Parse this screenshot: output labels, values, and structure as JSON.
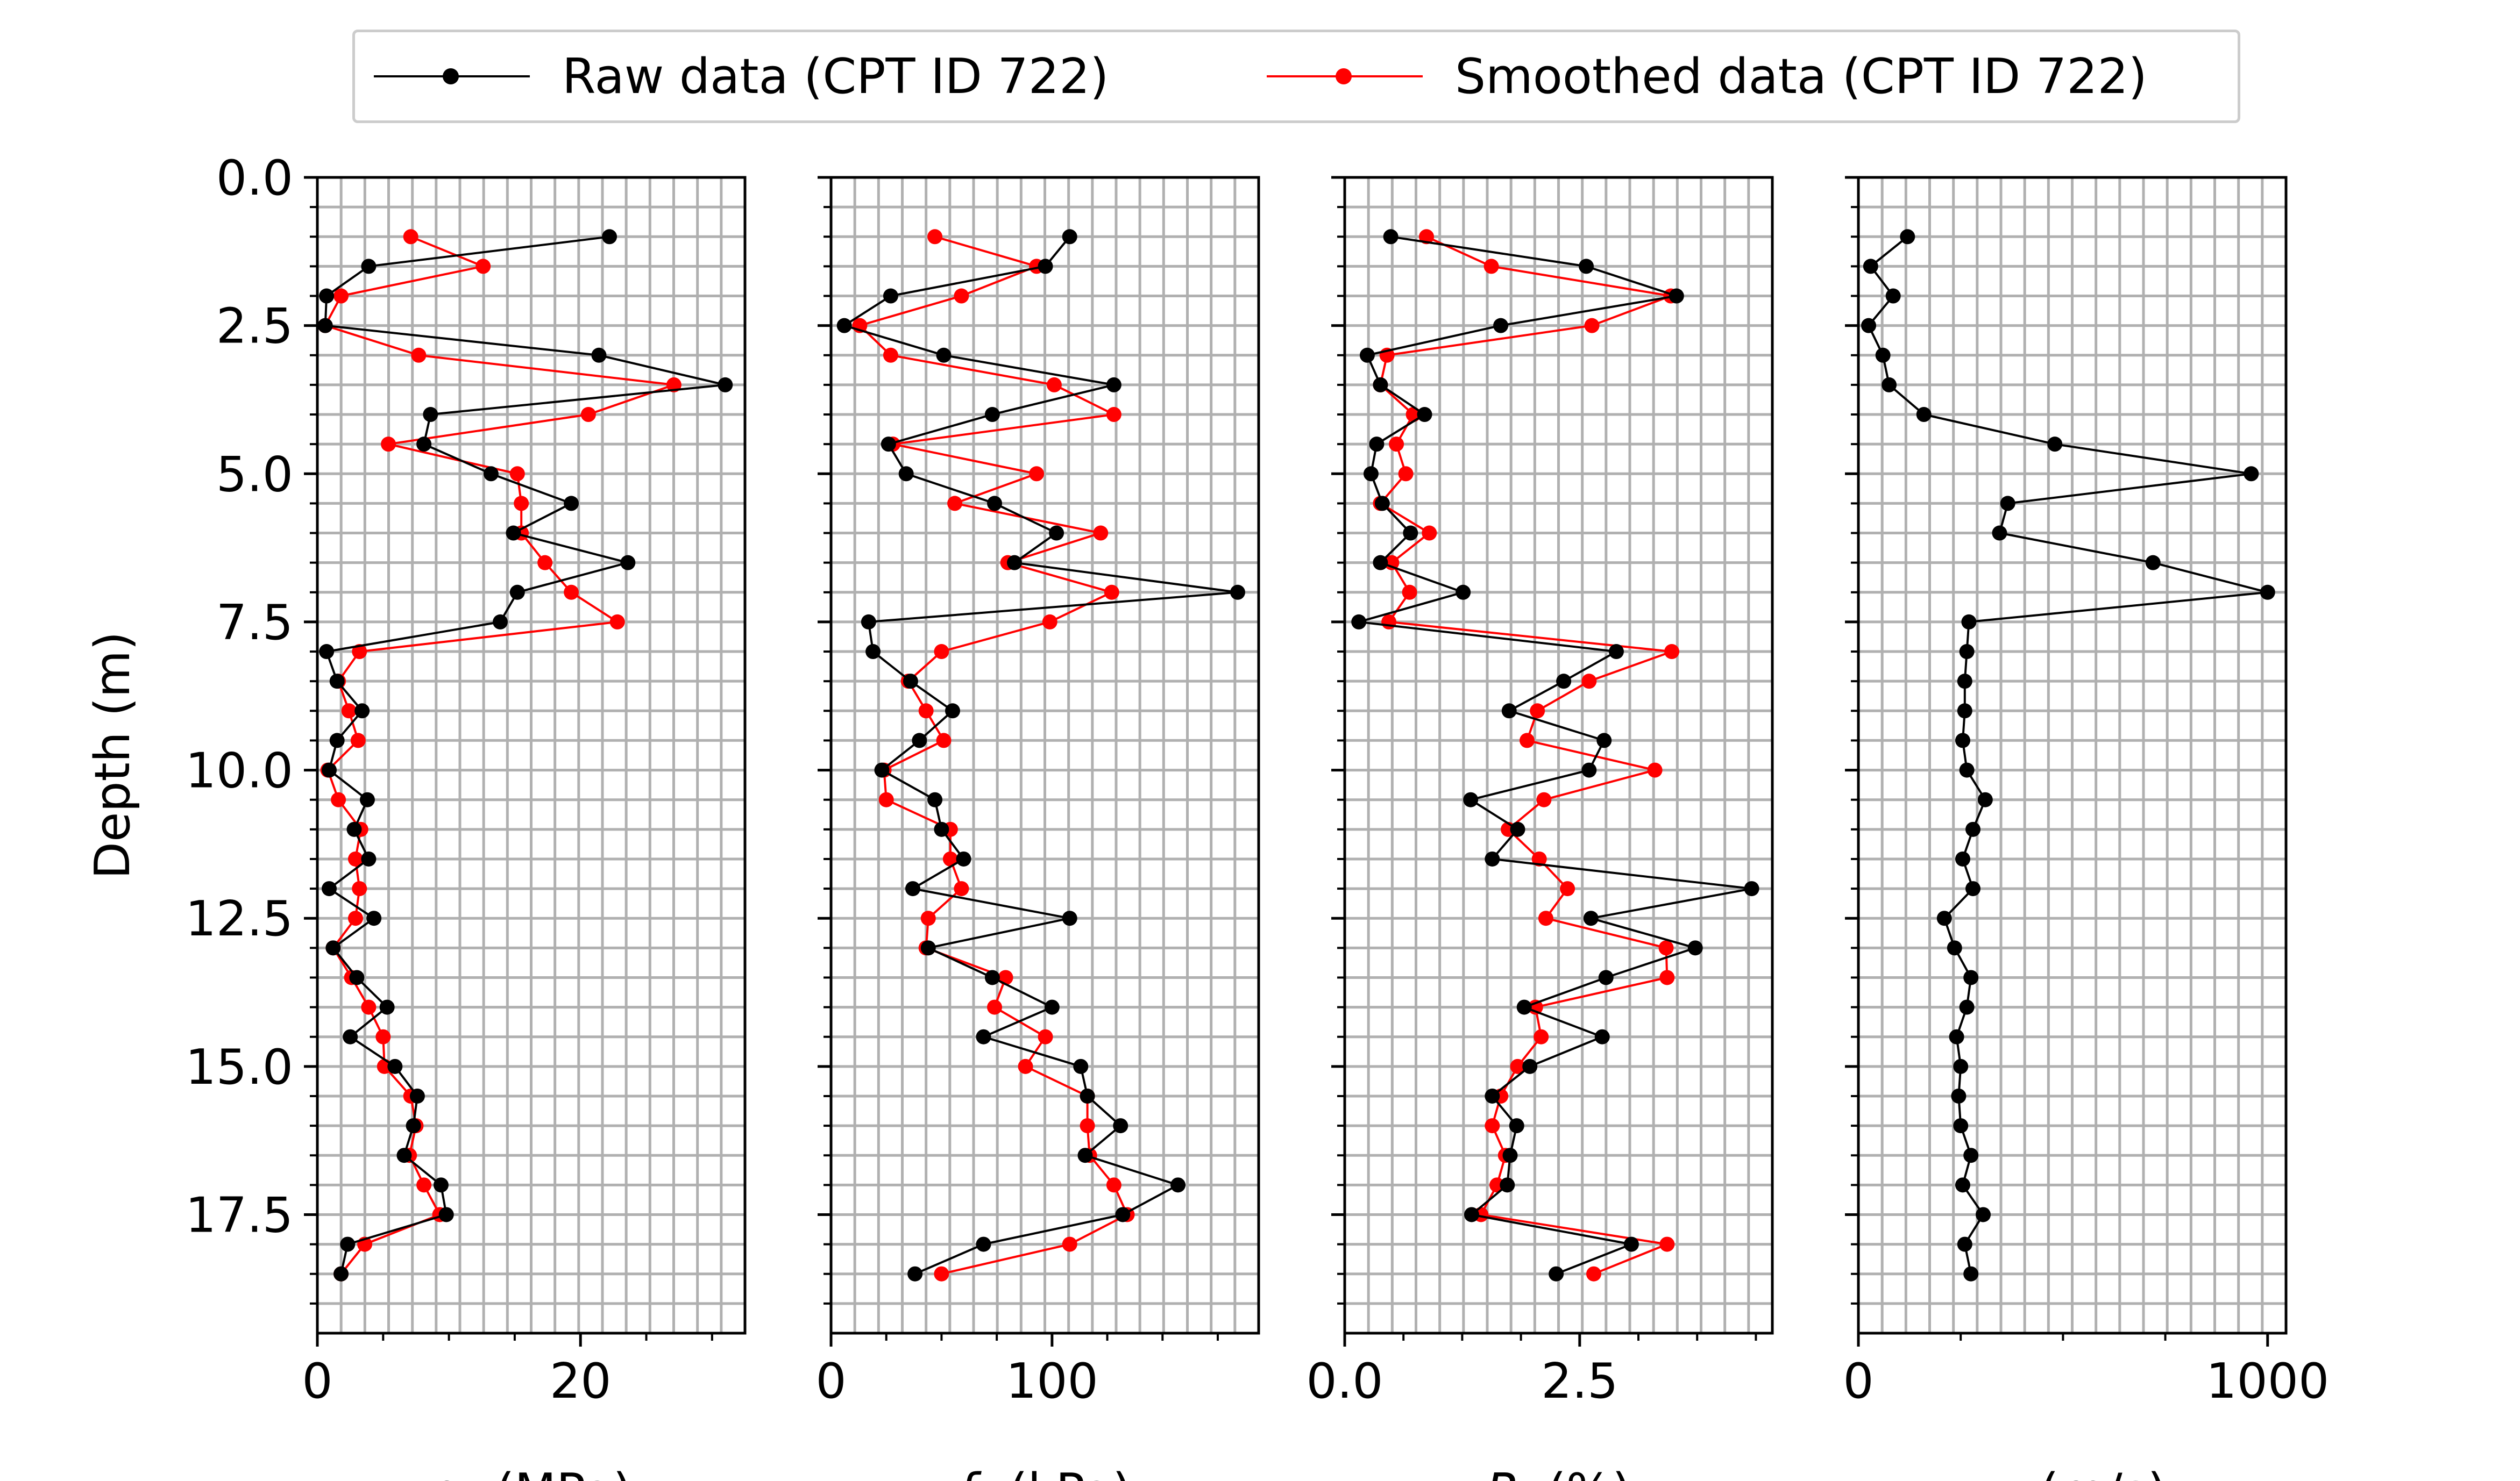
{
  "legend": {
    "raw_label": "Raw data (CPT ID 722)",
    "smooth_label": "Smoothed data (CPT ID 722)",
    "raw_color": "#000000",
    "smooth_color": "#ff0000"
  },
  "chart_data": [
    {
      "type": "line",
      "xlabel": "qc (MPa)",
      "xlabel_main": "q",
      "xlabel_sub": "c",
      "xlabel_unit": " (MPa)",
      "ylabel": "Depth (m)",
      "xlim": [
        0,
        32.5
      ],
      "ylim": [
        19.5,
        0
      ],
      "xticks": [
        0,
        20
      ],
      "yticks": [
        0.0,
        2.5,
        5.0,
        7.5,
        10.0,
        12.5,
        15.0,
        17.5
      ],
      "grid": true,
      "series": [
        {
          "name": "Raw data (CPT ID 722)",
          "color": "#000000",
          "depth": [
            1.0,
            1.5,
            2.0,
            2.5,
            3.0,
            3.5,
            4.0,
            4.5,
            5.0,
            5.5,
            6.0,
            6.5,
            7.0,
            7.5,
            8.0,
            8.5,
            9.0,
            9.5,
            10.0,
            10.5,
            11.0,
            11.5,
            12.0,
            12.5,
            13.0,
            13.5,
            14.0,
            14.5,
            15.0,
            15.5,
            16.0,
            16.5,
            17.0,
            17.5,
            18.0,
            18.5
          ],
          "values": [
            22.2,
            3.9,
            0.7,
            0.6,
            21.4,
            31.0,
            8.6,
            8.1,
            13.2,
            19.3,
            14.9,
            23.6,
            15.2,
            13.9,
            0.7,
            1.5,
            3.4,
            1.5,
            0.9,
            3.8,
            2.8,
            3.9,
            0.9,
            4.3,
            1.2,
            3.0,
            5.3,
            2.5,
            5.9,
            7.6,
            7.3,
            6.6,
            9.4,
            9.8,
            2.3,
            1.8
          ]
        },
        {
          "name": "Smoothed data (CPT ID 722)",
          "color": "#ff0000",
          "depth": [
            1.0,
            1.5,
            2.0,
            2.5,
            3.0,
            3.5,
            4.0,
            4.5,
            5.0,
            5.5,
            6.0,
            6.5,
            7.0,
            7.5,
            8.0,
            8.5,
            9.0,
            9.5,
            10.0,
            10.5,
            11.0,
            11.5,
            12.0,
            12.5,
            13.0,
            13.5,
            14.0,
            14.5,
            15.0,
            15.5,
            16.0,
            16.5,
            17.0,
            17.5,
            18.0,
            18.5
          ],
          "values": [
            7.1,
            12.6,
            1.8,
            0.6,
            7.7,
            27.1,
            20.6,
            5.4,
            15.2,
            15.5,
            15.5,
            17.3,
            19.3,
            22.8,
            3.2,
            1.6,
            2.4,
            3.1,
            0.8,
            1.6,
            3.3,
            2.9,
            3.2,
            2.9,
            1.2,
            2.6,
            3.9,
            5.0,
            5.1,
            7.1,
            7.5,
            7.0,
            8.1,
            9.3,
            3.6,
            1.8
          ]
        }
      ]
    },
    {
      "type": "line",
      "xlabel": "fs (kPa)",
      "xlabel_main": "f",
      "xlabel_sub": "s",
      "xlabel_unit": " (kPa)",
      "xlim": [
        0,
        193.5
      ],
      "ylim": [
        19.5,
        0
      ],
      "xticks": [
        0,
        100
      ],
      "grid": true,
      "series": [
        {
          "name": "Raw data (CPT ID 722)",
          "color": "#000000",
          "depth": [
            1.0,
            1.5,
            2.0,
            2.5,
            3.0,
            3.5,
            4.0,
            4.5,
            5.0,
            5.5,
            6.0,
            6.5,
            7.0,
            7.5,
            8.0,
            8.5,
            9.0,
            9.5,
            10.0,
            10.5,
            11.0,
            11.5,
            12.0,
            12.5,
            13.0,
            13.5,
            14.0,
            14.5,
            15.0,
            15.5,
            16.0,
            16.5,
            17.0,
            17.5,
            18.0,
            18.5
          ],
          "values": [
            108,
            97,
            27,
            6,
            51,
            128,
            73,
            26,
            34,
            74,
            102,
            83,
            184,
            17,
            19,
            36,
            55,
            40,
            23,
            47,
            50,
            60,
            37,
            108,
            44,
            73,
            100,
            69,
            113,
            116,
            131,
            115,
            157,
            132,
            69,
            38
          ]
        },
        {
          "name": "Smoothed data (CPT ID 722)",
          "color": "#ff0000",
          "depth": [
            1.0,
            1.5,
            2.0,
            2.5,
            3.0,
            3.5,
            4.0,
            4.5,
            5.0,
            5.5,
            6.0,
            6.5,
            7.0,
            7.5,
            8.0,
            8.5,
            9.0,
            9.5,
            10.0,
            10.5,
            11.0,
            11.5,
            12.0,
            12.5,
            13.0,
            13.5,
            14.0,
            14.5,
            15.0,
            15.5,
            16.0,
            16.5,
            17.0,
            17.5,
            18.0,
            18.5
          ],
          "values": [
            47,
            93,
            59,
            13,
            27,
            101,
            128,
            28,
            93,
            56,
            122,
            80,
            127,
            99,
            50,
            35,
            43,
            51,
            24,
            25,
            54,
            54,
            59,
            44,
            43,
            79,
            74,
            97,
            88,
            116,
            116,
            117,
            128,
            134,
            108,
            50
          ]
        }
      ]
    },
    {
      "type": "line",
      "xlabel": "Rf (%)",
      "xlabel_main": "R",
      "xlabel_sub": "f",
      "xlabel_unit": " (%)",
      "xlim": [
        0,
        4.55
      ],
      "ylim": [
        19.5,
        0
      ],
      "xticks": [
        0.0,
        2.5
      ],
      "grid": true,
      "series": [
        {
          "name": "Raw data (CPT ID 722)",
          "color": "#000000",
          "depth": [
            1.0,
            1.5,
            2.0,
            2.5,
            3.0,
            3.5,
            4.0,
            4.5,
            5.0,
            5.5,
            6.0,
            6.5,
            7.0,
            7.5,
            8.0,
            8.5,
            9.0,
            9.5,
            10.0,
            10.5,
            11.0,
            11.5,
            12.0,
            12.5,
            13.0,
            13.5,
            14.0,
            14.5,
            15.0,
            15.5,
            16.0,
            16.5,
            17.0,
            17.5,
            18.0,
            18.5
          ],
          "values": [
            0.49,
            2.57,
            3.53,
            1.66,
            0.24,
            0.38,
            0.85,
            0.34,
            0.28,
            0.4,
            0.7,
            0.38,
            1.26,
            0.15,
            2.89,
            2.33,
            1.75,
            2.76,
            2.6,
            1.34,
            1.84,
            1.57,
            4.33,
            2.62,
            3.73,
            2.78,
            1.91,
            2.74,
            1.97,
            1.57,
            1.83,
            1.76,
            1.73,
            1.35,
            3.05,
            2.25
          ]
        },
        {
          "name": "Smoothed data (CPT ID 722)",
          "color": "#ff0000",
          "depth": [
            1.0,
            1.5,
            2.0,
            2.5,
            3.0,
            3.5,
            4.0,
            4.5,
            5.0,
            5.5,
            6.0,
            6.5,
            7.0,
            7.5,
            8.0,
            8.5,
            9.0,
            9.5,
            10.0,
            10.5,
            11.0,
            11.5,
            12.0,
            12.5,
            13.0,
            13.5,
            14.0,
            14.5,
            15.0,
            15.5,
            16.0,
            16.5,
            17.0,
            17.5,
            18.0,
            18.5
          ],
          "values": [
            0.87,
            1.56,
            3.47,
            2.63,
            0.45,
            0.38,
            0.73,
            0.55,
            0.65,
            0.38,
            0.9,
            0.5,
            0.69,
            0.47,
            3.48,
            2.6,
            2.05,
            1.94,
            3.3,
            2.12,
            1.74,
            2.07,
            2.37,
            2.14,
            3.42,
            3.43,
            2.03,
            2.09,
            1.84,
            1.66,
            1.57,
            1.71,
            1.62,
            1.45,
            3.43,
            2.65
          ]
        }
      ]
    },
    {
      "type": "line",
      "xlabel": "vs (m/s)",
      "xlabel_main": "v",
      "xlabel_sub": "s",
      "xlabel_unit": " (m/s)",
      "xlim": [
        0,
        1045
      ],
      "ylim": [
        19.5,
        0
      ],
      "xticks": [
        0,
        1000
      ],
      "grid": true,
      "series": [
        {
          "name": "Raw data (CPT ID 722)",
          "color": "#000000",
          "depth": [
            1.0,
            1.5,
            2.0,
            2.5,
            3.0,
            3.5,
            4.0,
            4.5,
            5.0,
            5.5,
            6.0,
            6.5,
            7.0,
            7.5,
            8.0,
            8.5,
            9.0,
            9.5,
            10.0,
            10.5,
            11.0,
            11.5,
            12.0,
            12.5,
            13.0,
            13.5,
            14.0,
            14.5,
            15.0,
            15.5,
            16.0,
            16.5,
            17.0,
            17.5,
            18.0,
            18.5
          ],
          "values": [
            120,
            30,
            85,
            25,
            60,
            75,
            160,
            480,
            960,
            365,
            345,
            720,
            1000,
            270,
            265,
            260,
            260,
            255,
            265,
            310,
            280,
            255,
            280,
            210,
            235,
            275,
            265,
            240,
            250,
            245,
            250,
            275,
            255,
            305,
            260,
            275
          ]
        }
      ]
    }
  ]
}
